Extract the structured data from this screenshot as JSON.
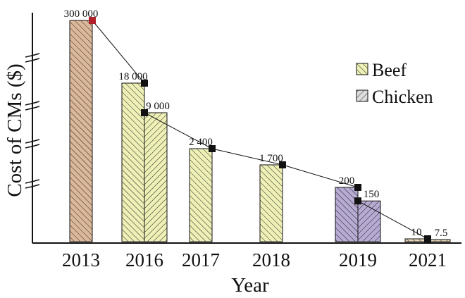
{
  "chart_data": {
    "type": "bar",
    "xlabel": "Year",
    "ylabel": "Cost of CMs ($)",
    "y_axis_note": "broken y-axis (non-linear scale with axis breaks)",
    "categories": [
      "2013",
      "2016",
      "2017",
      "2018",
      "2019",
      "2021"
    ],
    "series": [
      {
        "name": "Beef",
        "values": [
          300000,
          18000,
          2400,
          1700,
          200,
          10
        ],
        "labels": [
          "300 000",
          "18 000",
          "2 400",
          "1 700",
          "200",
          "10"
        ]
      },
      {
        "name": "Chicken",
        "values": [
          null,
          9000,
          null,
          null,
          150,
          7.5
        ],
        "labels": [
          "",
          "9 000",
          "",
          "",
          "150",
          "7.5"
        ]
      }
    ],
    "bar_colors": [
      "#dcb89a",
      "#eef0b6",
      "#eef0b6",
      "#eef0b6",
      "#b7abd4",
      "#e8d4b6"
    ],
    "trend_line": "connects bar tops with square markers",
    "legend": [
      "Beef",
      "Chicken"
    ],
    "legend_position": "right"
  }
}
